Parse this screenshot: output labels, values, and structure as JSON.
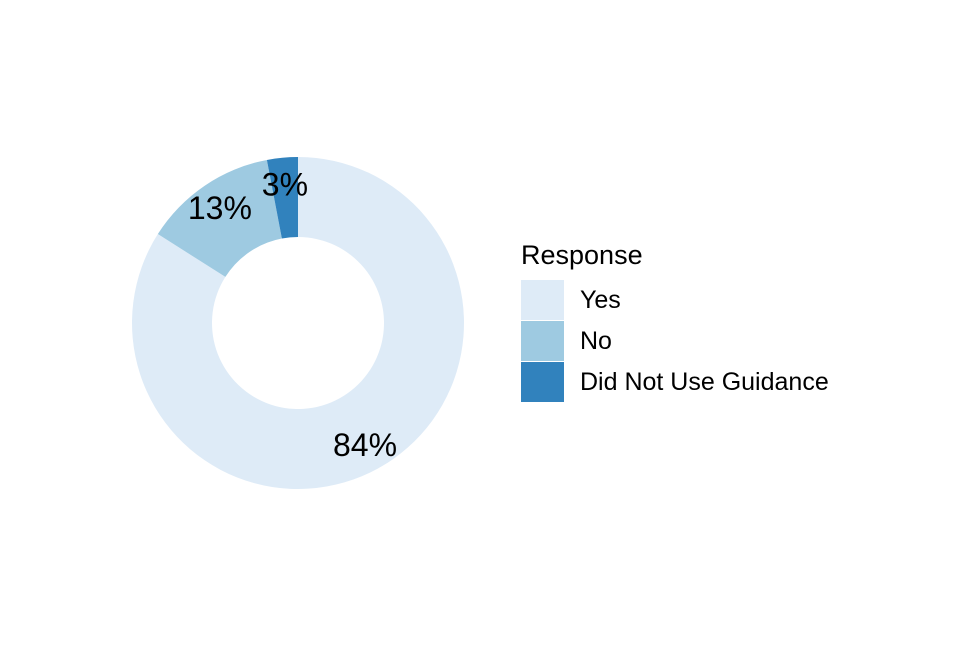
{
  "chart_data": {
    "type": "pie",
    "donut": true,
    "categories": [
      "Yes",
      "No",
      "Did Not Use Guidance"
    ],
    "values": [
      84,
      13,
      3
    ],
    "data_labels": [
      "84%",
      "13%",
      "3%"
    ],
    "colors": [
      "#deebf7",
      "#9ecae1",
      "#3182bd"
    ],
    "legend": {
      "title": "Response",
      "placement": "right"
    }
  }
}
